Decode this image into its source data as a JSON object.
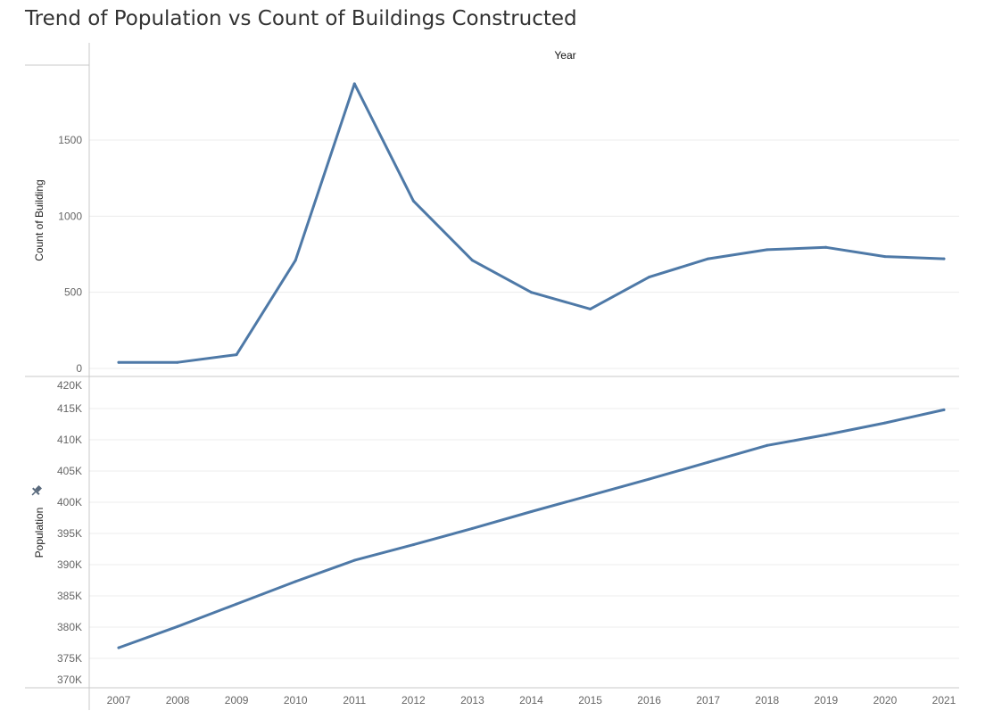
{
  "title": "Trend of Population vs Count of Buildings Constructed",
  "column_header": "Year",
  "pin_icon": "pin-icon",
  "colors": {
    "line": "#4e79a7",
    "grid": "#ececec",
    "axis": "#c8c8c8"
  },
  "chart_data": [
    {
      "type": "line",
      "title": "",
      "xlabel": "",
      "ylabel": "Count of Building",
      "x": [
        2007,
        2008,
        2009,
        2010,
        2011,
        2012,
        2013,
        2014,
        2015,
        2016,
        2017,
        2018,
        2019,
        2020,
        2021
      ],
      "series": [
        {
          "values": [
            40,
            40,
            90,
            710,
            1870,
            1100,
            710,
            500,
            390,
            600,
            720,
            780,
            795,
            735,
            720
          ]
        }
      ],
      "ylim": [
        0,
        2000
      ],
      "yticks": [
        0,
        500,
        1000,
        1500
      ],
      "ytick_labels": [
        "0",
        "500",
        "1000",
        "1500"
      ],
      "grid": true
    },
    {
      "type": "line",
      "title": "",
      "xlabel": "",
      "ylabel": "Population",
      "x": [
        2007,
        2008,
        2009,
        2010,
        2011,
        2012,
        2013,
        2014,
        2015,
        2016,
        2017,
        2018,
        2019,
        2020,
        2021
      ],
      "series": [
        {
          "values": [
            376700,
            380100,
            383700,
            387300,
            390700,
            393200,
            395800,
            398500,
            401100,
            403700,
            406400,
            409100,
            410800,
            412700,
            414800
          ]
        }
      ],
      "ylim": [
        370000,
        420000
      ],
      "yticks": [
        370000,
        375000,
        380000,
        385000,
        390000,
        395000,
        400000,
        405000,
        410000,
        415000,
        420000
      ],
      "ytick_labels": [
        "370K",
        "375K",
        "380K",
        "385K",
        "390K",
        "395K",
        "400K",
        "405K",
        "410K",
        "415K",
        "420K"
      ],
      "xtick_labels": [
        "2007",
        "2008",
        "2009",
        "2010",
        "2011",
        "2012",
        "2013",
        "2014",
        "2015",
        "2016",
        "2017",
        "2018",
        "2019",
        "2020",
        "2021"
      ],
      "grid": true
    }
  ]
}
